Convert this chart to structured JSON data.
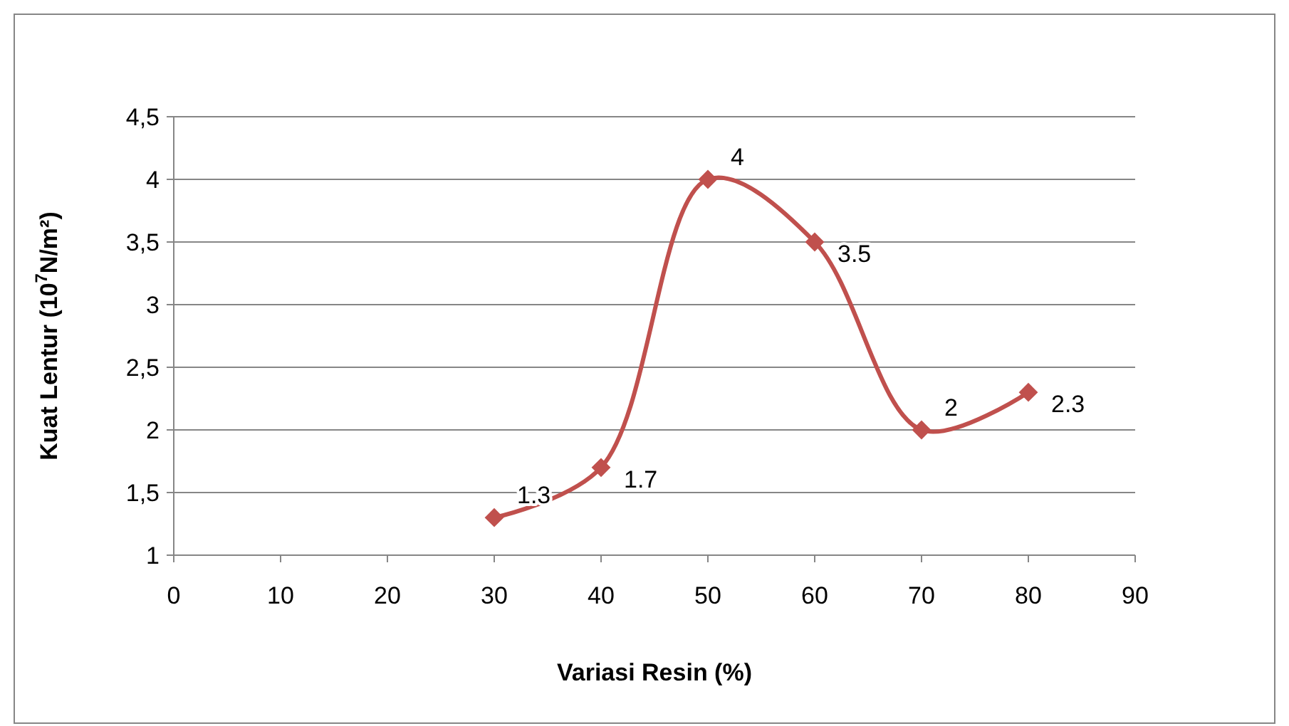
{
  "chart_data": {
    "type": "line",
    "xlabel": "Variasi Resin (%)",
    "ylabel": "Kuat Lentur (10$^{7}$N/m²)",
    "x": [
      30,
      40,
      50,
      60,
      70,
      80
    ],
    "series": [
      {
        "color": "#c0504d",
        "values": [
          1.3,
          1.7,
          4,
          3.5,
          2,
          2.3
        ]
      }
    ],
    "xlim": [
      0,
      90
    ],
    "xticks": [
      0,
      10,
      20,
      30,
      40,
      50,
      60,
      70,
      80,
      90
    ],
    "ylim": [
      1,
      4.5
    ],
    "yticks": [
      1,
      {
        "value": 1.5,
        "label": "1,5"
      },
      2,
      {
        "value": 2.5,
        "label": "2,5"
      },
      3,
      {
        "value": 3.5,
        "label": "3,5"
      },
      4,
      {
        "value": 4.5,
        "label": "4,5"
      }
    ],
    "grid": "y",
    "marker": "diamond",
    "line_style": "solid",
    "data_labels": true
  }
}
